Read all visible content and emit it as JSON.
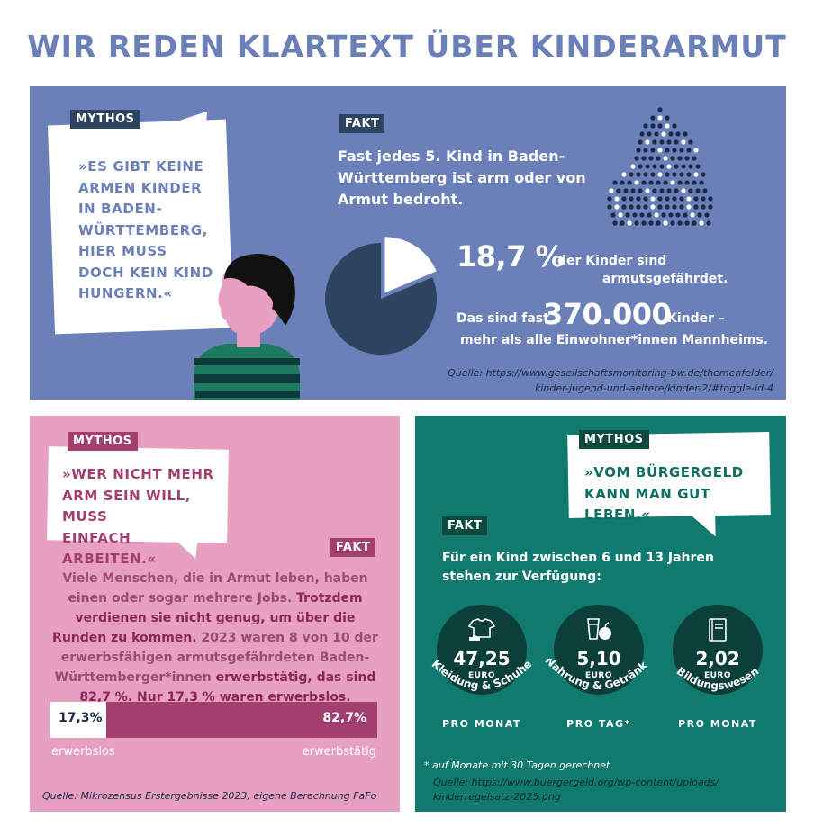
{
  "title": "WIR REDEN KLARTEXT ÜBER KINDERARMUT",
  "top": {
    "mythos_tag": "MYTHOS",
    "myth_lines": [
      "»ES GIBT KEINE",
      "ARMEN KINDER",
      "IN BADEN-",
      "WÜRTTEMBERG,",
      "HIER MUSS",
      "DOCH KEIN KIND",
      "HUNGERN.«"
    ],
    "fakt_tag": "FAKT",
    "fakt_pre": "Fast jedes ",
    "fakt_bold": "5. Kind",
    "fakt_post": " in Baden-Württemberg ist arm oder von Armut bedroht.",
    "percent": "18,7 %",
    "percent_label_1": "der Kinder sind",
    "percent_label_2": "armutsgefährdet.",
    "count_pre": "Das sind fast",
    "count": "370.000",
    "count_post": "Kinder –",
    "compare_pre": "mehr als ",
    "compare_bold": "alle Einwohner*innen Mannheims.",
    "source_1": "Quelle: https://www.gesellschaftsmonitoring-bw.de/themenfelder/",
    "source_2": "kinder-jugend-und-aeltere/kinder-2/#toggle-id-4",
    "pie_fraction": 0.187
  },
  "bottom_left": {
    "mythos_tag": "MYTHOS",
    "myth_lines": [
      "»WER NICHT MEHR",
      "ARM SEIN WILL, MUSS",
      "EINFACH ARBEITEN.«"
    ],
    "fakt_tag": "FAKT",
    "fakt_1": "Viele Menschen, die in Armut leben, haben einen oder sogar mehrere Jobs. ",
    "fakt_2": "Trotzdem verdienen sie nicht genug, um über die Runden zu kommen.",
    "fakt_3": " 2023 waren 8 von 10 der erwerbsfähigen armutsgefährdeten Baden-Württemberger*innen ",
    "fakt_4": "erwerbstätig, das sind 82,7 %. Nur 17,3 % waren erwerbslos.",
    "bar_left_value": "17,3%",
    "bar_right_value": "82,7%",
    "bar_fraction": 0.173,
    "bar_left_caption": "erwerbslos",
    "bar_right_caption": "erwerbstätig",
    "source": "Quelle: Mikrozensus Erstergebnisse 2023, eigene Berechnung FaFo"
  },
  "bottom_right": {
    "mythos_tag": "MYTHOS",
    "myth_lines": [
      "»VOM BÜRGERGELD",
      "KANN MAN GUT LEBEN.«"
    ],
    "fakt_tag": "FAKT",
    "fakt_lines": [
      "Für ein Kind zwischen 6 und 13 Jahren",
      "stehen zur Verfügung:"
    ],
    "items": [
      {
        "value": "47,25",
        "currency": "EURO",
        "label": "Kleidung & Schuhe",
        "period": "PRO MONAT",
        "icon": "tshirt-shoe-icon"
      },
      {
        "value": "5,10",
        "currency": "EURO",
        "label": "Nahrung & Getränke",
        "period": "PRO TAG*",
        "icon": "glass-apple-icon"
      },
      {
        "value": "2,02",
        "currency": "EURO",
        "label": "Bildungswesen",
        "period": "PRO MONAT",
        "icon": "book-icon"
      }
    ],
    "note": "* auf Monate mit 30 Tagen gerechnet",
    "source_1": "Quelle: https://www.buergergeld.org/wp-content/uploads/",
    "source_2": "kinderregelsatz-2025.png"
  },
  "colors": {
    "blue": "#6b7fb9",
    "navy": "#2d4461",
    "pink": "#e8a0c2",
    "berry": "#a23f6e",
    "green": "#0f7a6d",
    "dark_green": "#0c3e3a"
  }
}
